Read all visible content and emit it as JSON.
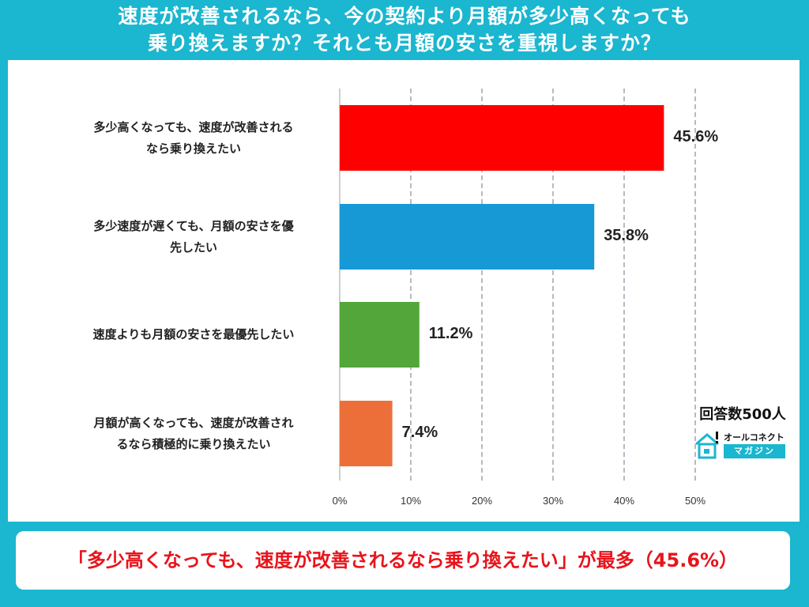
{
  "title_line1": "速度が改善されるなら、今の契約より月額が多少高くなっても",
  "title_line2": "乗り換えますか？それとも月額の安さを重視しますか？",
  "chart_data": {
    "type": "bar",
    "orientation": "horizontal",
    "categories": [
      [
        "多少高くなっても、速度が改善される",
        "なら乗り換えたい"
      ],
      [
        "多少速度が遅くても、月額の安さを優",
        "先したい"
      ],
      [
        "速度よりも月額の安さを最優先したい"
      ],
      [
        "月額が高くなっても、速度が改善され",
        "るなら積極的に乗り換えたい"
      ]
    ],
    "values": [
      45.6,
      35.8,
      11.2,
      7.4
    ],
    "value_labels": [
      "45.6%",
      "35.8%",
      "11.2%",
      "7.4%"
    ],
    "colors": [
      "#ff0000",
      "#1799d6",
      "#52a63a",
      "#ec6f3a"
    ],
    "xlim": [
      0,
      50
    ],
    "ticks": [
      0,
      10,
      20,
      30,
      40,
      50
    ],
    "tick_labels": [
      "0%",
      "10%",
      "20%",
      "30%",
      "40%",
      "50%"
    ],
    "grid": "vertical dashed"
  },
  "footnote": "回答数500人",
  "logo": {
    "top_text": "オールコネクト",
    "bottom_text": "マガジン"
  },
  "callout": "「多少高くなっても、速度が改善されるなら乗り換えたい」が最多（45.6%）"
}
